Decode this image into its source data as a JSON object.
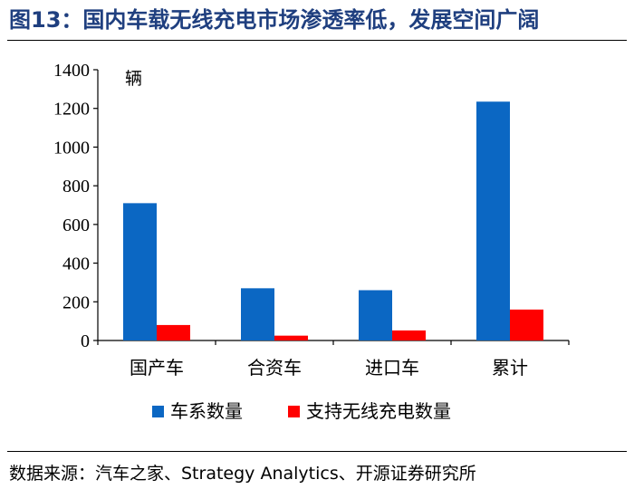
{
  "figure": {
    "title": "图13：国内车载无线充电市场渗透率低，发展空间广阔",
    "source": "数据来源：汽车之家、Strategy Analytics、开源证券研究所"
  },
  "chart_data": {
    "type": "bar",
    "title": "",
    "unit_label": "辆",
    "xlabel": "",
    "ylabel": "",
    "categories": [
      "国产车",
      "合资车",
      "进口车",
      "累计"
    ],
    "series": [
      {
        "name": "车系数量",
        "values": [
          710,
          270,
          260,
          1235
        ],
        "color": "#0b67c3"
      },
      {
        "name": "支持无线充电数量",
        "values": [
          80,
          25,
          52,
          160
        ],
        "color": "#ff0000"
      }
    ],
    "ylim": [
      0,
      1400
    ],
    "yticks": [
      0,
      200,
      400,
      600,
      800,
      1000,
      1200,
      1400
    ],
    "grid": false,
    "legend_position": "bottom"
  }
}
